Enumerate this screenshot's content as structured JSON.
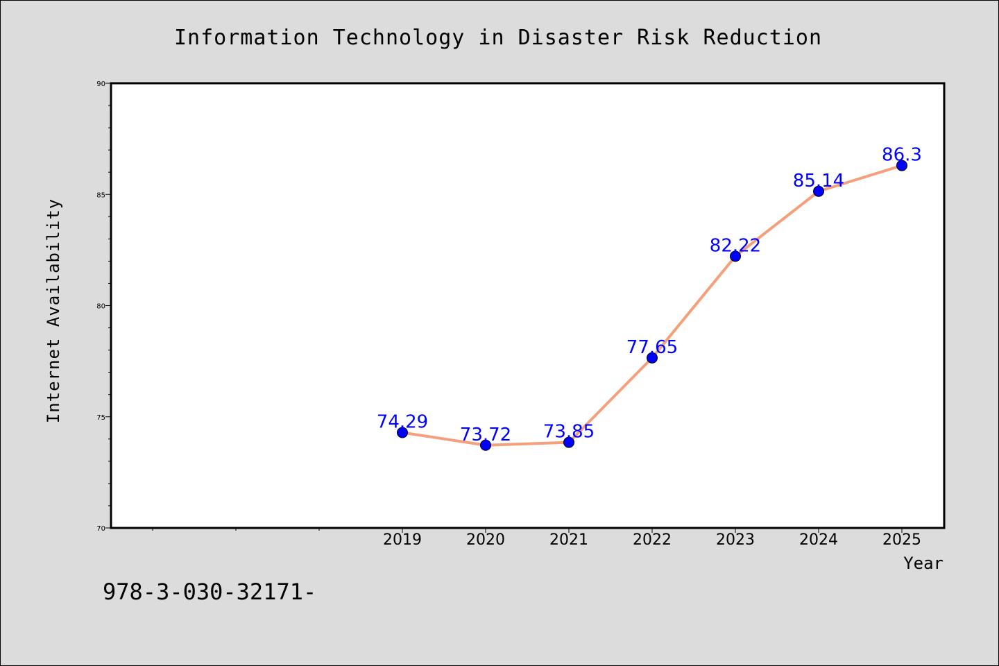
{
  "chart_data": {
    "type": "line",
    "title": "Information Technology in Disaster Risk Reduction",
    "xlabel": "Year",
    "ylabel": "Internet Availability",
    "categories": [
      "2019",
      "2020",
      "2021",
      "2022",
      "2023",
      "2024",
      "2025"
    ],
    "values": [
      74.29,
      73.72,
      73.85,
      77.65,
      82.22,
      85.14,
      86.3
    ],
    "data_labels": [
      "74.29",
      "73.72",
      "73.85",
      "77.65",
      "82.22",
      "85.14",
      "86.3"
    ],
    "ylim": [
      70,
      90
    ],
    "yticks": [
      "70",
      "75",
      "80",
      "85",
      "90"
    ],
    "grid": false,
    "line_color": "#f4a07c",
    "marker_color": "#0000ff",
    "label_color": "#0000ff"
  },
  "footer": {
    "note": "978-3-030-32171-"
  }
}
